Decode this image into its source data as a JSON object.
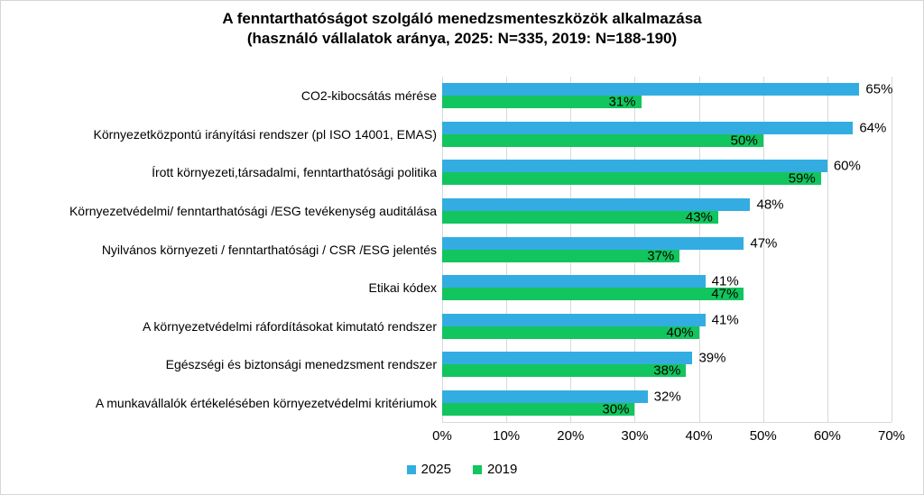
{
  "title": {
    "line1": "A fenntarthatóságot szolgáló menedzsmenteszközök alkalmazása",
    "line2": "(használó vállalatok aránya, 2025: N=335, 2019: N=188-190)"
  },
  "chart_data": {
    "type": "bar",
    "orientation": "horizontal",
    "title": "A fenntarthatóságot szolgáló menedzsmenteszközök alkalmazása (használó vállalatok aránya, 2025: N=335, 2019: N=188-190)",
    "categories": [
      "CO2-kibocsátás mérése",
      "Környezetközpontú irányítási rendszer (pl  ISO 14001, EMAS)",
      "Írott környezeti,társadalmi, fenntarthatósági politika",
      "Környezetvédelmi/ fenntarthatósági /ESG tevékenység auditálása",
      "Nyilvános környezeti / fenntarthatósági / CSR /ESG jelentés",
      "Etikai kódex",
      "A környezetvédelmi ráfordításokat kimutató rendszer",
      "Egészségi és biztonsági menedzsment rendszer",
      "A munkavállalók értékelésében környezetvédelmi kritériumok"
    ],
    "series": [
      {
        "name": "2025",
        "color": "#33ADE1",
        "label_placement": "outside-end",
        "values": [
          65,
          64,
          60,
          48,
          47,
          41,
          41,
          39,
          32
        ]
      },
      {
        "name": "2019",
        "color": "#12C55E",
        "label_placement": "inside-end",
        "values": [
          31,
          50,
          59,
          43,
          37,
          47,
          40,
          38,
          30
        ]
      }
    ],
    "value_suffix": "%",
    "xlim": [
      0,
      70
    ],
    "tick_values": [
      0,
      10,
      20,
      30,
      40,
      50,
      60,
      70
    ],
    "tick_labels": [
      "0%",
      "10%",
      "20%",
      "30%",
      "40%",
      "50%",
      "60%",
      "70%"
    ],
    "grid": true,
    "gridline_color": "#d9d9d9",
    "legend_position": "bottom",
    "legend_entries": [
      "2025",
      "2019"
    ]
  }
}
